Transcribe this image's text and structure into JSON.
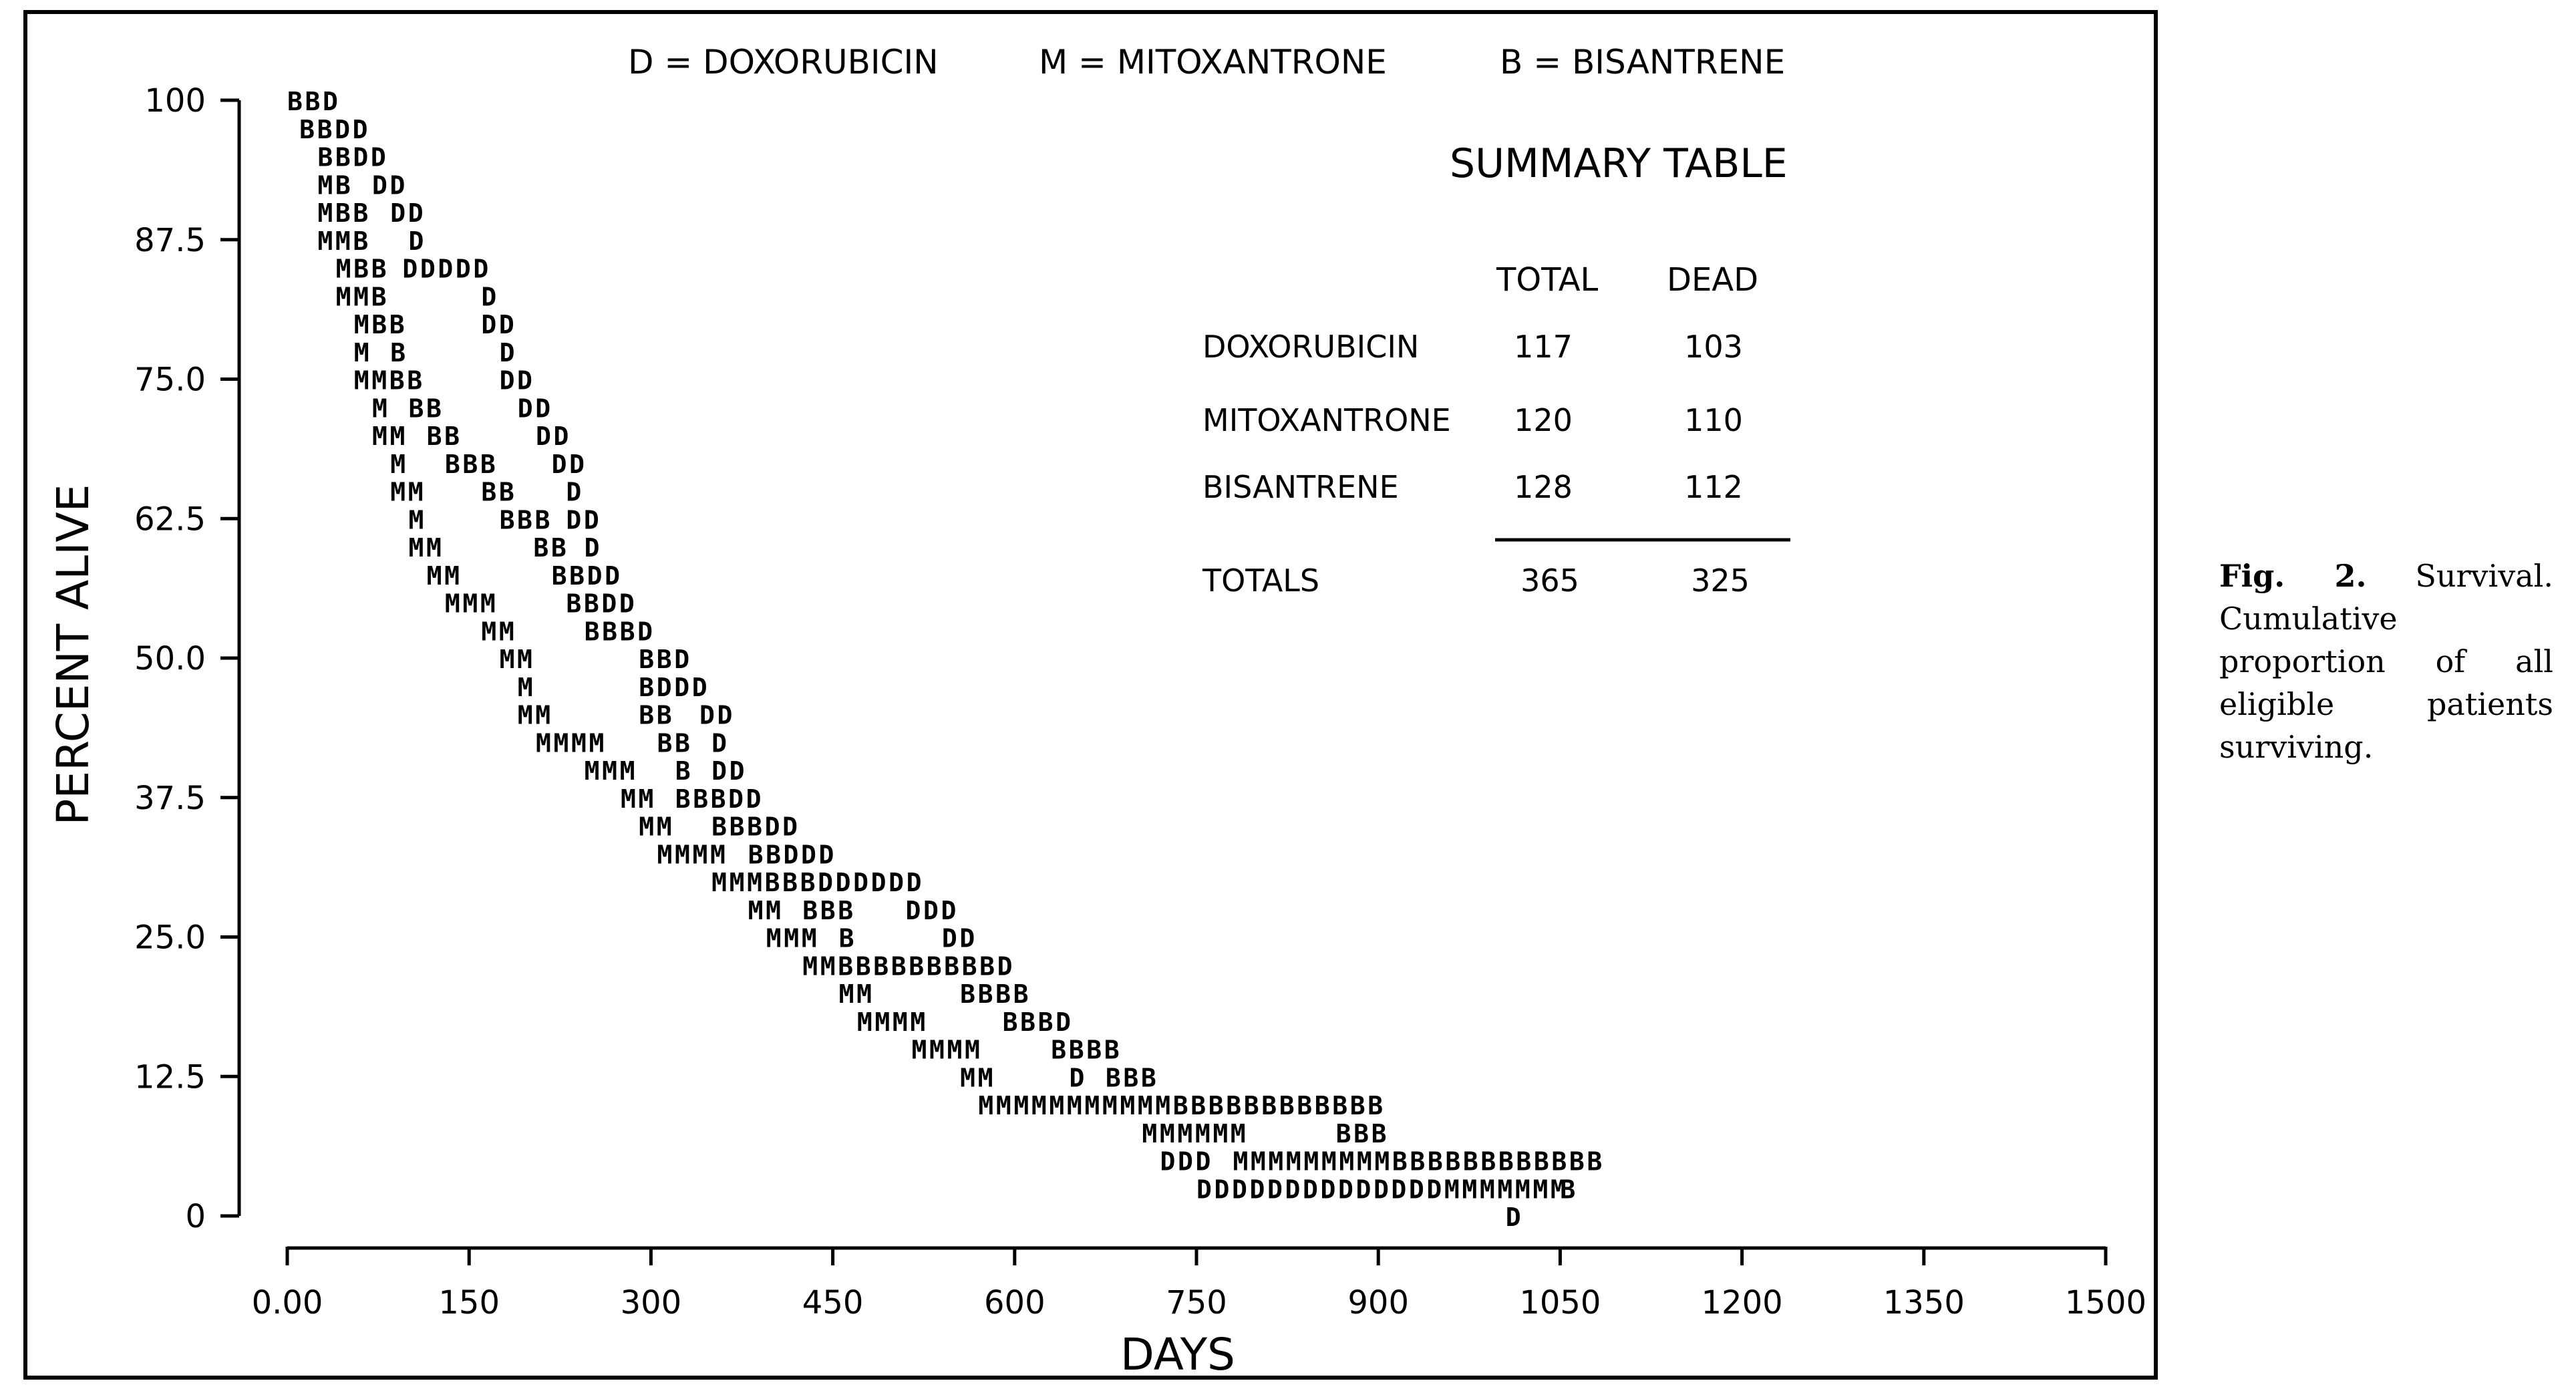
{
  "chart_data": {
    "type": "scatter",
    "ylabel": "PERCENT ALIVE",
    "xlabel": "DAYS",
    "xlim": [
      0,
      1500
    ],
    "ylim": [
      0,
      100
    ],
    "x_ticks": [
      "0.00",
      "150",
      "300",
      "450",
      "600",
      "750",
      "900",
      "1050",
      "1200",
      "1350",
      "1500"
    ],
    "y_ticks": [
      "100",
      "87.5",
      "75.0",
      "62.5",
      "50.0",
      "37.5",
      "25.0",
      "12.5",
      "0"
    ],
    "legend": [
      {
        "symbol": "D",
        "eq": "=",
        "name": "DOXORUBICIN"
      },
      {
        "symbol": "M",
        "eq": "=",
        "name": "MITOXANTRONE"
      },
      {
        "symbol": "B",
        "eq": "=",
        "name": "BISANTRENE"
      }
    ],
    "legend_placement": "top",
    "grid": false,
    "rows": [
      {
        "y": 100,
        "marks": [
          [
            0,
            "BBD"
          ]
        ]
      },
      {
        "y": 97.5,
        "marks": [
          [
            10,
            "BBDD"
          ]
        ]
      },
      {
        "y": 95.0,
        "marks": [
          [
            25,
            "BBDD"
          ]
        ]
      },
      {
        "y": 92.5,
        "marks": [
          [
            25,
            "MB"
          ],
          [
            70,
            "DD"
          ]
        ]
      },
      {
        "y": 90.0,
        "marks": [
          [
            25,
            "MBB"
          ],
          [
            85,
            "DD"
          ]
        ]
      },
      {
        "y": 87.5,
        "marks": [
          [
            25,
            "MMB"
          ],
          [
            100,
            "D"
          ]
        ]
      },
      {
        "y": 85.0,
        "marks": [
          [
            40,
            "MBB"
          ],
          [
            95,
            "DDDDD"
          ]
        ]
      },
      {
        "y": 82.5,
        "marks": [
          [
            40,
            "MMB"
          ],
          [
            160,
            "D"
          ]
        ]
      },
      {
        "y": 80.0,
        "marks": [
          [
            55,
            "MBB"
          ],
          [
            160,
            "DD"
          ]
        ]
      },
      {
        "y": 77.5,
        "marks": [
          [
            55,
            "M"
          ],
          [
            85,
            "B"
          ],
          [
            175,
            "D"
          ]
        ]
      },
      {
        "y": 75.0,
        "marks": [
          [
            55,
            "MMBB"
          ],
          [
            175,
            "DD"
          ]
        ]
      },
      {
        "y": 72.5,
        "marks": [
          [
            70,
            "M"
          ],
          [
            100,
            "BB"
          ],
          [
            190,
            "DD"
          ]
        ]
      },
      {
        "y": 70.0,
        "marks": [
          [
            70,
            "MM"
          ],
          [
            115,
            "BB"
          ],
          [
            205,
            "DD"
          ]
        ]
      },
      {
        "y": 67.5,
        "marks": [
          [
            85,
            "M"
          ],
          [
            130,
            "BBB"
          ],
          [
            218,
            "DD"
          ]
        ]
      },
      {
        "y": 65.0,
        "marks": [
          [
            85,
            "MM"
          ],
          [
            160,
            "BB"
          ],
          [
            230,
            "D"
          ]
        ]
      },
      {
        "y": 62.5,
        "marks": [
          [
            100,
            "M"
          ],
          [
            175,
            "BBB"
          ],
          [
            230,
            "DD"
          ]
        ]
      },
      {
        "y": 60.0,
        "marks": [
          [
            100,
            "MM"
          ],
          [
            203,
            "BB"
          ],
          [
            245,
            "D"
          ]
        ]
      },
      {
        "y": 57.5,
        "marks": [
          [
            115,
            "MM"
          ],
          [
            218,
            "BBDD"
          ]
        ]
      },
      {
        "y": 55.0,
        "marks": [
          [
            130,
            "MMM"
          ],
          [
            230,
            "BBDD"
          ]
        ]
      },
      {
        "y": 52.5,
        "marks": [
          [
            160,
            "MM"
          ],
          [
            245,
            "BBBD"
          ]
        ]
      },
      {
        "y": 50.0,
        "marks": [
          [
            175,
            "MM"
          ],
          [
            290,
            "BBD"
          ]
        ]
      },
      {
        "y": 47.5,
        "marks": [
          [
            190,
            "M"
          ],
          [
            290,
            "BDDD"
          ]
        ]
      },
      {
        "y": 45.0,
        "marks": [
          [
            190,
            "MM"
          ],
          [
            290,
            "BB"
          ],
          [
            340,
            "DD"
          ]
        ]
      },
      {
        "y": 42.5,
        "marks": [
          [
            205,
            "MMMM"
          ],
          [
            305,
            "BB"
          ],
          [
            350,
            "D"
          ]
        ]
      },
      {
        "y": 40.0,
        "marks": [
          [
            245,
            "MMM"
          ],
          [
            320,
            "B"
          ],
          [
            350,
            "DD"
          ]
        ]
      },
      {
        "y": 37.5,
        "marks": [
          [
            275,
            "MM"
          ],
          [
            320,
            "BBBDD"
          ]
        ]
      },
      {
        "y": 35.0,
        "marks": [
          [
            290,
            "MM"
          ],
          [
            350,
            "BBBDD"
          ]
        ]
      },
      {
        "y": 32.5,
        "marks": [
          [
            305,
            "MMMM"
          ],
          [
            380,
            "BBDDD"
          ]
        ]
      },
      {
        "y": 30.0,
        "marks": [
          [
            350,
            "MMMBBBDDDDDD"
          ]
        ]
      },
      {
        "y": 27.5,
        "marks": [
          [
            380,
            "MM"
          ],
          [
            425,
            "BBB"
          ],
          [
            510,
            "DDD"
          ]
        ]
      },
      {
        "y": 25.0,
        "marks": [
          [
            395,
            "MMM"
          ],
          [
            455,
            "B"
          ],
          [
            540,
            "DD"
          ]
        ]
      },
      {
        "y": 22.5,
        "marks": [
          [
            425,
            "MMBBBBBBBBBD"
          ]
        ]
      },
      {
        "y": 20.0,
        "marks": [
          [
            455,
            "MM"
          ],
          [
            555,
            "BBBB"
          ]
        ]
      },
      {
        "y": 17.5,
        "marks": [
          [
            470,
            "MMMM"
          ],
          [
            590,
            "BBBD"
          ]
        ]
      },
      {
        "y": 15.0,
        "marks": [
          [
            515,
            "MMMM"
          ],
          [
            630,
            "BBBB"
          ]
        ]
      },
      {
        "y": 12.5,
        "marks": [
          [
            555,
            "MM"
          ],
          [
            645,
            "D"
          ],
          [
            675,
            "BBB"
          ]
        ]
      },
      {
        "y": 10.0,
        "marks": [
          [
            570,
            "MMMMMMMMMMMBBBBBBBBBBBB"
          ]
        ]
      },
      {
        "y": 7.5,
        "marks": [
          [
            705,
            "MMMMMM"
          ],
          [
            865,
            "BBB"
          ]
        ]
      },
      {
        "y": 5.0,
        "marks": [
          [
            720,
            "DDD"
          ],
          [
            780,
            "MMMMMMMMMBBBBBBBBBBBB"
          ]
        ]
      },
      {
        "y": 2.5,
        "marks": [
          [
            750,
            "DDDDDDDDDDDDDDMMMMMMM"
          ],
          [
            1050,
            "B"
          ]
        ]
      },
      {
        "y": 0,
        "marks": [
          [
            1005,
            "D"
          ]
        ]
      }
    ],
    "summary_table": {
      "title": "SUMMARY TABLE",
      "columns": [
        "TOTAL",
        "DEAD"
      ],
      "rows": [
        {
          "label": "DOXORUBICIN",
          "total": "117",
          "dead": "103"
        },
        {
          "label": "MITOXANTRONE",
          "total": "120",
          "dead": "110"
        },
        {
          "label": "BISANTRENE",
          "total": "128",
          "dead": "112"
        }
      ],
      "totals": {
        "label": "TOTALS",
        "total": "365",
        "dead": "325"
      }
    }
  },
  "caption": {
    "label": "Fig. 2.",
    "text": "Survival. Cumulative proportion of all eligible patients surviving."
  }
}
